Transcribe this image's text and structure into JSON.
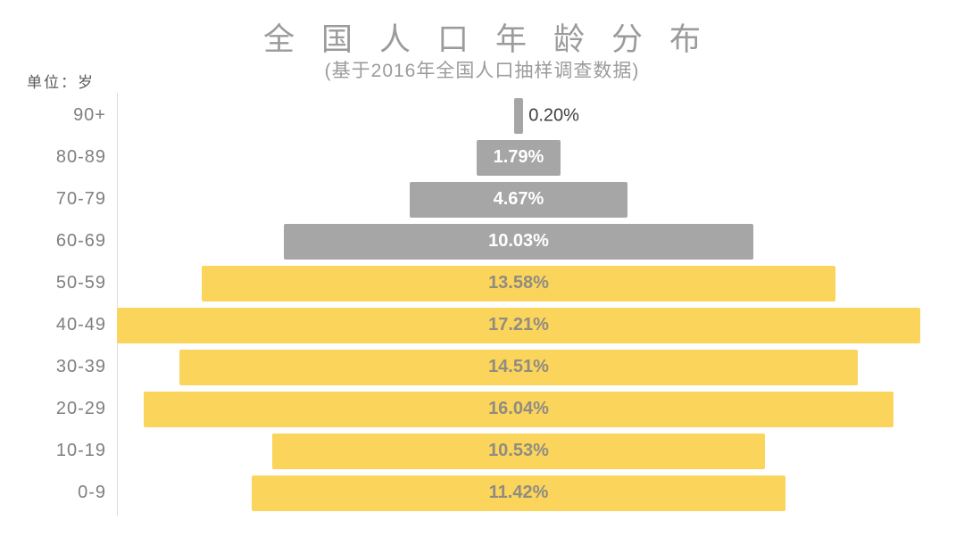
{
  "chart_data": {
    "type": "bar",
    "orientation": "horizontal-centered-pyramid",
    "title": "全国人口年龄分布",
    "subtitle": "(基于2016年全国人口抽样调查数据)",
    "unit_label": "单位：岁",
    "categories": [
      "90+",
      "80-89",
      "70-79",
      "60-69",
      "50-59",
      "40-49",
      "30-39",
      "20-29",
      "10-19",
      "0-9"
    ],
    "values": [
      0.2,
      1.79,
      4.67,
      10.03,
      13.58,
      17.21,
      14.51,
      16.04,
      10.53,
      11.42
    ],
    "value_labels": [
      "0.20%",
      "1.79%",
      "4.67%",
      "10.03%",
      "13.58%",
      "17.21%",
      "14.51%",
      "16.04%",
      "10.53%",
      "11.42%"
    ],
    "bar_colors": [
      "#a6a6a6",
      "#a6a6a6",
      "#a6a6a6",
      "#a6a6a6",
      "#fbd45c",
      "#fbd45c",
      "#fbd45c",
      "#fbd45c",
      "#fbd45c",
      "#fbd45c"
    ],
    "label_colors": [
      "#404040",
      "#ffffff",
      "#ffffff",
      "#ffffff",
      "#8f8c82",
      "#8f8c82",
      "#8f8c82",
      "#8f8c82",
      "#8f8c82",
      "#8f8c82"
    ],
    "label_placement": [
      "outside-right",
      "inside",
      "inside",
      "inside",
      "inside",
      "inside",
      "inside",
      "inside",
      "inside",
      "inside"
    ],
    "colors": {
      "elderly_gray": "#a6a6a6",
      "young_yellow": "#fbd45c",
      "title_gray": "#9b9b9b",
      "category_label_gray": "#7f7f7f",
      "axis_line": "#dcdcdc",
      "background": "#ffffff"
    },
    "xlim_percent": [
      0,
      17.21
    ],
    "grid": "off",
    "legend": "none"
  }
}
